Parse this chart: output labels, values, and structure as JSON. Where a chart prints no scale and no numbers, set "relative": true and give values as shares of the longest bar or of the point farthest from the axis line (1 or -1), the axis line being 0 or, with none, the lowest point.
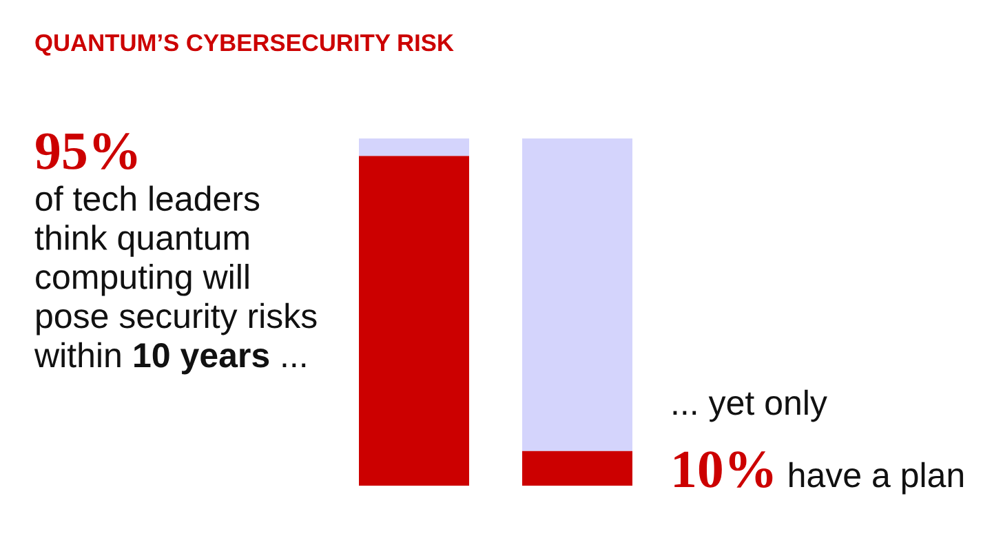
{
  "chart_data": {
    "type": "bar",
    "title": "QUANTUM’S CYBERSECURITY RISK",
    "categories": [
      null,
      null
    ],
    "stacked": true,
    "relative": true,
    "series": [
      {
        "color": "#cc0000",
        "values": [
          0.95,
          0.1
        ]
      },
      {
        "color": "#d4d4fc",
        "values": [
          0.05,
          0.9
        ]
      }
    ],
    "annotations": [
      "95%",
      "of tech leaders\nthink quantum\ncomputing will\npose security risks",
      "within",
      "10 years",
      "...",
      "... yet only",
      "10%",
      "have a plan"
    ]
  }
}
